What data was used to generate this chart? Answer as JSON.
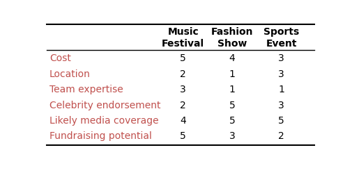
{
  "columns": [
    "Music\nFestival",
    "Fashion\nShow",
    "Sports\nEvent"
  ],
  "rows": [
    "Cost",
    "Location",
    "Team expertise",
    "Celebrity endorsement",
    "Likely media coverage",
    "Fundraising potential"
  ],
  "values": [
    [
      5,
      4,
      3
    ],
    [
      2,
      1,
      3
    ],
    [
      3,
      1,
      1
    ],
    [
      2,
      5,
      3
    ],
    [
      4,
      5,
      5
    ],
    [
      5,
      3,
      2
    ]
  ],
  "row_color": "#c0504d",
  "col_header_color": "#000000",
  "value_color": "#000000",
  "bg_color": "#ffffff",
  "header_line_color": "#000000",
  "font_size": 10,
  "header_font_size": 10
}
